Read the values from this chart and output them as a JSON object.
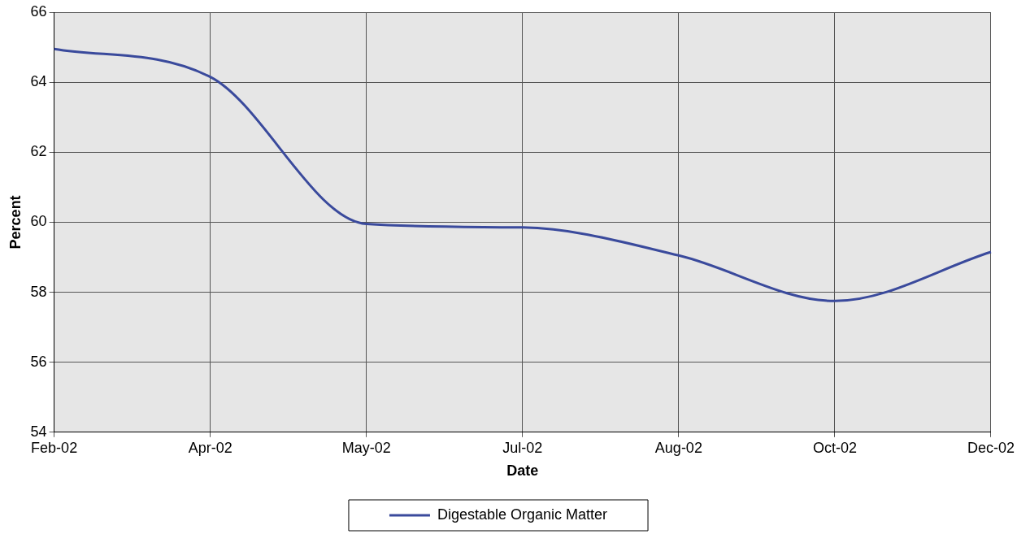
{
  "chart_data": {
    "type": "line",
    "xlabel": "Date",
    "ylabel": "Percent",
    "categories": [
      "Feb-02",
      "Apr-02",
      "May-02",
      "Jul-02",
      "Aug-02",
      "Oct-02",
      "Dec-02"
    ],
    "series": [
      {
        "name": "Digestable Organic Matter",
        "color": "#3a4a9c",
        "values": [
          64.95,
          64.15,
          59.95,
          59.85,
          59.05,
          57.75,
          59.15
        ]
      }
    ],
    "ylim": [
      54,
      66
    ],
    "yticks": [
      54,
      56,
      58,
      60,
      62,
      64,
      66
    ],
    "grid": true,
    "legend": "bottom",
    "marker": "none",
    "line_style": "solid"
  }
}
